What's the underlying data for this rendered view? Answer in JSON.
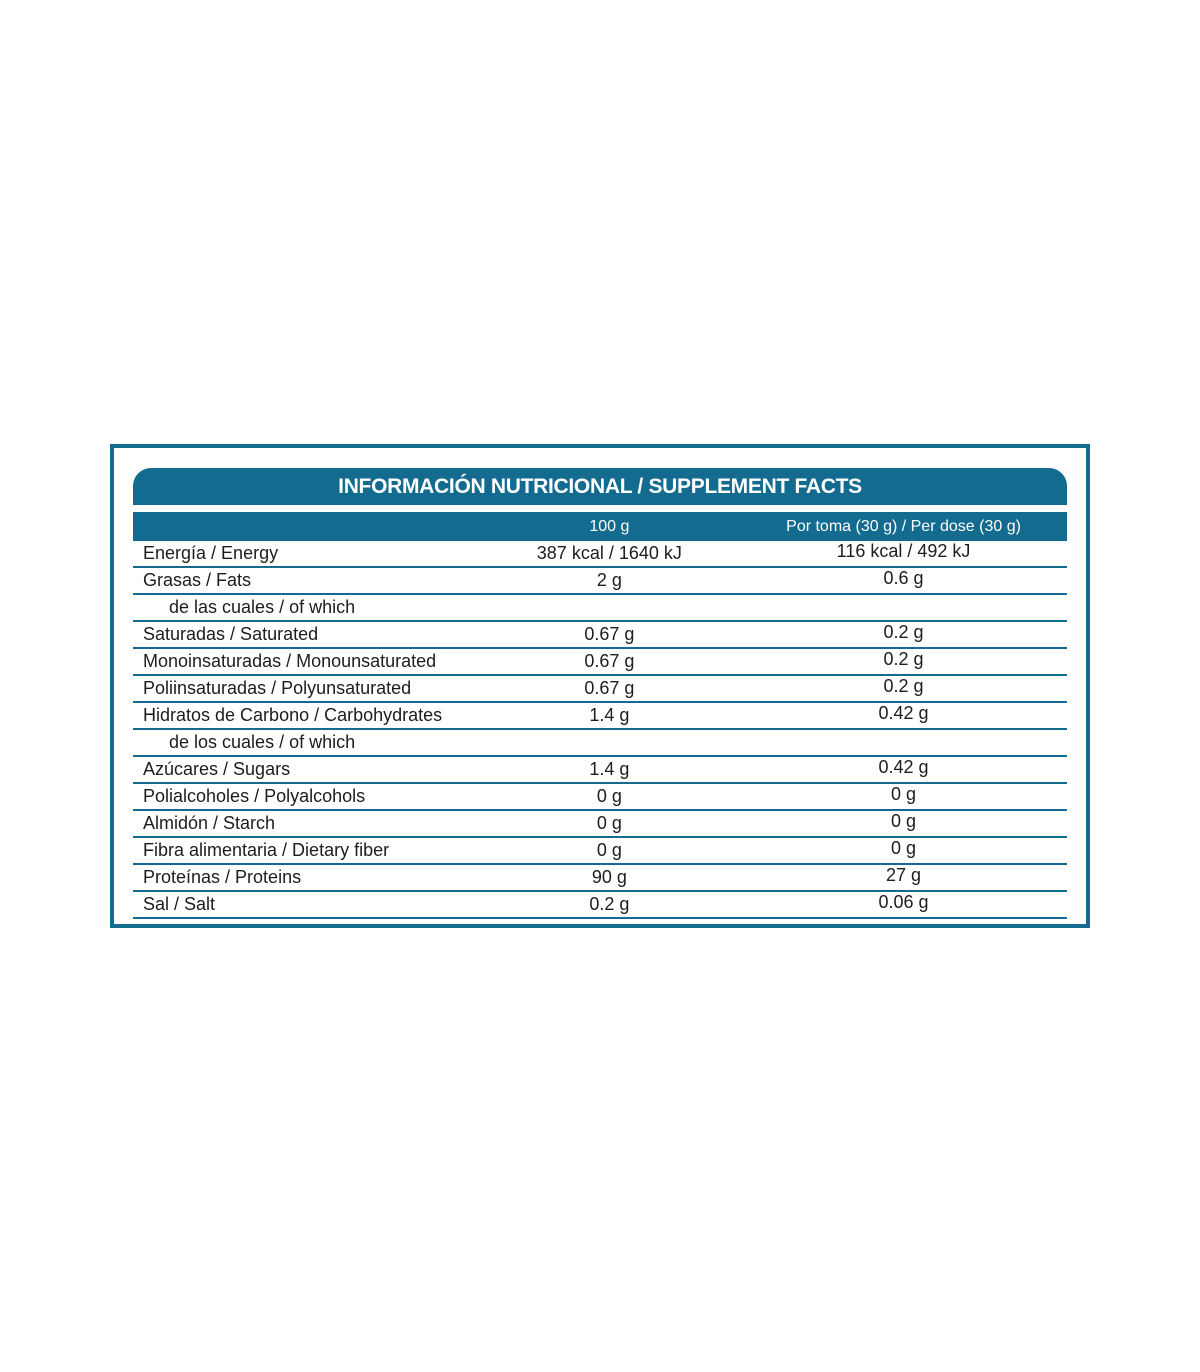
{
  "colors": {
    "accent": "#146b90",
    "text": "#1d1d1b",
    "header_text": "#ffffff"
  },
  "table": {
    "title": "INFORMACIÓN NUTRICIONAL / SUPPLEMENT FACTS",
    "column_headers": {
      "per_100g": "100 g",
      "per_dose": "Por toma (30 g) / Per dose (30 g)"
    },
    "rows": [
      {
        "label": "Energía / Energy",
        "per_100g": "387 kcal / 1640 kJ",
        "per_dose": "116 kcal / 492 kJ",
        "indent": false
      },
      {
        "label": "Grasas / Fats",
        "per_100g": "2 g",
        "per_dose": "0.6 g",
        "indent": false
      },
      {
        "label": "de las cuales / of which",
        "per_100g": "",
        "per_dose": "",
        "indent": true
      },
      {
        "label": "Saturadas / Saturated",
        "per_100g": "0.67 g",
        "per_dose": "0.2 g",
        "indent": false
      },
      {
        "label": "Monoinsaturadas / Monounsaturated",
        "per_100g": "0.67 g",
        "per_dose": "0.2 g",
        "indent": false
      },
      {
        "label": "Poliinsaturadas / Polyunsaturated",
        "per_100g": "0.67 g",
        "per_dose": "0.2 g",
        "indent": false
      },
      {
        "label": "Hidratos de Carbono / Carbohydrates",
        "per_100g": "1.4 g",
        "per_dose": "0.42 g",
        "indent": false
      },
      {
        "label": "de los cuales / of which",
        "per_100g": "",
        "per_dose": "",
        "indent": true
      },
      {
        "label": "Azúcares / Sugars",
        "per_100g": "1.4 g",
        "per_dose": "0.42 g",
        "indent": false
      },
      {
        "label": "Polialcoholes / Polyalcohols",
        "per_100g": "0 g",
        "per_dose": "0 g",
        "indent": false
      },
      {
        "label": "Almidón / Starch",
        "per_100g": "0 g",
        "per_dose": "0 g",
        "indent": false
      },
      {
        "label": "Fibra alimentaria / Dietary fiber",
        "per_100g": "0 g",
        "per_dose": "0 g",
        "indent": false
      },
      {
        "label": "Proteínas / Proteins",
        "per_100g": "90 g",
        "per_dose": "27 g",
        "indent": false
      },
      {
        "label": "Sal / Salt",
        "per_100g": "0.2 g",
        "per_dose": "0.06 g",
        "indent": false
      }
    ]
  }
}
